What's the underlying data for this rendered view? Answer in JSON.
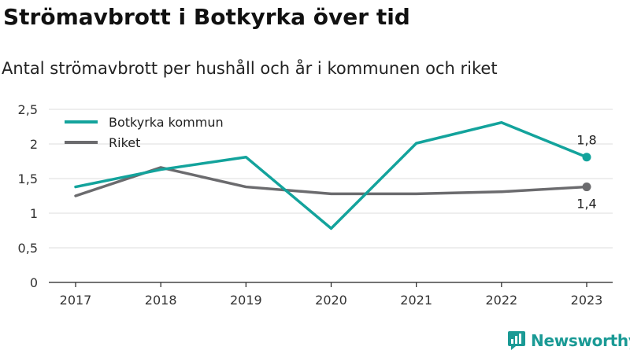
{
  "header": {
    "title": "Strömavbrott i Botkyrka över tid",
    "subtitle": "Antal strömavbrott per hushåll och år i kommunen och riket"
  },
  "brand": {
    "name": "Newsworthy",
    "icon": "newsworthy-logo-icon",
    "color": "#1a9a95"
  },
  "chart_data": {
    "type": "line",
    "x": [
      "2017",
      "2018",
      "2019",
      "2020",
      "2021",
      "2022",
      "2023"
    ],
    "ylim": [
      0,
      2.5
    ],
    "yticks": [
      {
        "value": 0,
        "label": "0"
      },
      {
        "value": 0.5,
        "label": "0,5"
      },
      {
        "value": 1,
        "label": "1"
      },
      {
        "value": 1.5,
        "label": "1,5"
      },
      {
        "value": 2,
        "label": "2"
      },
      {
        "value": 2.5,
        "label": "2,5"
      }
    ],
    "grid": true,
    "legend_position": "top-left",
    "series": [
      {
        "name": "Botkyrka kommun",
        "color": "#13a39c",
        "values": [
          1.38,
          1.63,
          1.81,
          0.78,
          2.01,
          2.31,
          1.81
        ],
        "end_label": "1,8"
      },
      {
        "name": "Riket",
        "color": "#6b6b6e",
        "values": [
          1.25,
          1.66,
          1.38,
          1.28,
          1.28,
          1.31,
          1.38
        ],
        "end_label": "1,4"
      }
    ]
  }
}
